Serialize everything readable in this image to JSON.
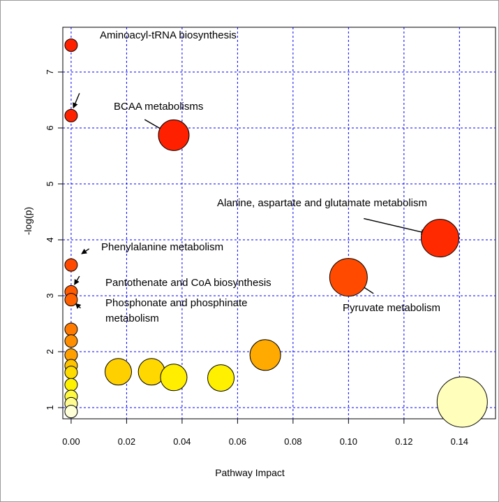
{
  "chart_data": {
    "type": "scatter",
    "title": "",
    "xlabel": "Pathway Impact",
    "ylabel": "-log(p)",
    "xlim": [
      -0.003,
      0.153
    ],
    "ylim": [
      0.8,
      7.8
    ],
    "x_ticks": [
      0.0,
      0.02,
      0.04,
      0.06,
      0.08,
      0.1,
      0.12,
      0.14
    ],
    "x_tick_labels": [
      "0.00",
      "0.02",
      "0.04",
      "0.06",
      "0.08",
      "0.10",
      "0.12",
      "0.14"
    ],
    "y_ticks": [
      1,
      2,
      3,
      4,
      5,
      6,
      7
    ],
    "y_tick_labels": [
      "1",
      "2",
      "3",
      "4",
      "5",
      "6",
      "7"
    ],
    "grid": true,
    "grid_color": "#0000ff",
    "points": [
      {
        "x": 0.0,
        "y": 7.48,
        "size": "small",
        "color": "#ff2000"
      },
      {
        "x": 0.0,
        "y": 6.22,
        "size": "small",
        "color": "#ff2200"
      },
      {
        "x": 0.037,
        "y": 5.87,
        "size": "large",
        "color": "#ff2000"
      },
      {
        "x": 0.133,
        "y": 4.03,
        "size": "xlarge",
        "color": "#ff2a00"
      },
      {
        "x": 0.0,
        "y": 3.55,
        "size": "small",
        "color": "#ff4800"
      },
      {
        "x": 0.1,
        "y": 3.33,
        "size": "xlarge",
        "color": "#ff4a00"
      },
      {
        "x": 0.0,
        "y": 3.07,
        "size": "small",
        "color": "#ff5a00"
      },
      {
        "x": 0.0,
        "y": 2.93,
        "size": "small",
        "color": "#ff6000"
      },
      {
        "x": 0.0,
        "y": 2.4,
        "size": "small",
        "color": "#ff7a00"
      },
      {
        "x": 0.0,
        "y": 2.19,
        "size": "small",
        "color": "#ff8f00"
      },
      {
        "x": 0.0,
        "y": 1.94,
        "size": "small",
        "color": "#ffa000"
      },
      {
        "x": 0.07,
        "y": 1.94,
        "size": "large",
        "color": "#ffaa00"
      },
      {
        "x": 0.0,
        "y": 1.75,
        "size": "small",
        "color": "#ffc400"
      },
      {
        "x": 0.0,
        "y": 1.63,
        "size": "small",
        "color": "#ffdc00"
      },
      {
        "x": 0.017,
        "y": 1.64,
        "size": "medium",
        "color": "#ffd000"
      },
      {
        "x": 0.029,
        "y": 1.64,
        "size": "medium",
        "color": "#ffd800"
      },
      {
        "x": 0.037,
        "y": 1.54,
        "size": "medium",
        "color": "#ffee00"
      },
      {
        "x": 0.054,
        "y": 1.53,
        "size": "medium",
        "color": "#fff000"
      },
      {
        "x": 0.0,
        "y": 1.41,
        "size": "small",
        "color": "#fff200"
      },
      {
        "x": 0.0,
        "y": 1.2,
        "size": "small",
        "color": "#fffa40"
      },
      {
        "x": 0.0,
        "y": 1.07,
        "size": "small",
        "color": "#fffb90"
      },
      {
        "x": 0.141,
        "y": 1.1,
        "size": "xxlarge",
        "color": "#ffffbb"
      },
      {
        "x": 0.0,
        "y": 0.93,
        "size": "small",
        "color": "#ffffd8"
      }
    ],
    "annotations": [
      {
        "lines": [
          "Aminoacyl-tRNA biosynthesis"
        ]
      },
      {
        "lines": [
          "BCAA metabolisms"
        ]
      },
      {
        "lines": [
          "Alanine, aspartate and glutamate metabolism"
        ]
      },
      {
        "lines": [
          "Phenylalanine metabolism"
        ]
      },
      {
        "lines": [
          "Pantothenate and CoA biosynthesis"
        ]
      },
      {
        "lines": [
          "Phosphonate and phosphinate",
          "metabolism"
        ]
      },
      {
        "lines": [
          "Pyruvate metabolism"
        ]
      }
    ]
  }
}
